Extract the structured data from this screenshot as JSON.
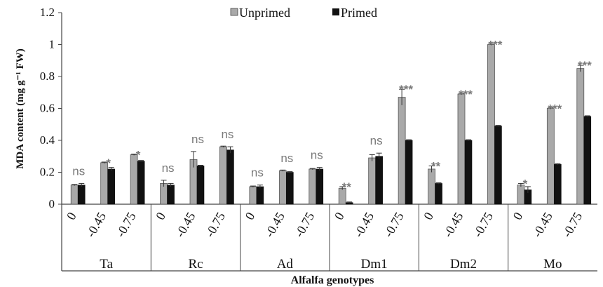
{
  "chart_data": {
    "type": "bar",
    "title": "",
    "xlabel": "Alfalfa genotypes",
    "ylabel": "MDA content (mg g⁻¹ FW)",
    "ylim": [
      0,
      1.2
    ],
    "yticks": [
      "0",
      "0.2",
      "0.4",
      "0.6",
      "0.8",
      "1",
      "1.2"
    ],
    "legend_position": "top-center",
    "colors": {
      "Unprimed": "#a9a9a9",
      "Primed": "#111111"
    },
    "groups": [
      {
        "name": "Ta",
        "levels": [
          {
            "label": "0",
            "unprimed": 0.12,
            "unprimed_err": 0.0,
            "primed": 0.12,
            "primed_err": 0.01,
            "sig": "ns"
          },
          {
            "label": "-0.45",
            "unprimed": 0.26,
            "unprimed_err": 0.0,
            "primed": 0.22,
            "primed_err": 0.01,
            "sig": "*"
          },
          {
            "label": "-0.75",
            "unprimed": 0.31,
            "unprimed_err": 0.0,
            "primed": 0.27,
            "primed_err": 0.0,
            "sig": "*"
          }
        ]
      },
      {
        "name": "Rc",
        "levels": [
          {
            "label": "0",
            "unprimed": 0.13,
            "unprimed_err": 0.02,
            "primed": 0.12,
            "primed_err": 0.01,
            "sig": "ns"
          },
          {
            "label": "-0.45",
            "unprimed": 0.28,
            "unprimed_err": 0.05,
            "primed": 0.24,
            "primed_err": 0.0,
            "sig": "ns"
          },
          {
            "label": "-0.75",
            "unprimed": 0.36,
            "unprimed_err": 0.0,
            "primed": 0.34,
            "primed_err": 0.02,
            "sig": "ns"
          }
        ]
      },
      {
        "name": "Ad",
        "levels": [
          {
            "label": "0",
            "unprimed": 0.11,
            "unprimed_err": 0.0,
            "primed": 0.11,
            "primed_err": 0.01,
            "sig": "ns"
          },
          {
            "label": "-0.45",
            "unprimed": 0.21,
            "unprimed_err": 0.0,
            "primed": 0.2,
            "primed_err": 0.0,
            "sig": "ns"
          },
          {
            "label": "-0.75",
            "unprimed": 0.22,
            "unprimed_err": 0.0,
            "primed": 0.22,
            "primed_err": 0.01,
            "sig": "ns"
          }
        ]
      },
      {
        "name": "Dm1",
        "levels": [
          {
            "label": "0",
            "unprimed": 0.1,
            "unprimed_err": 0.01,
            "primed": 0.01,
            "primed_err": 0.0,
            "sig": "**"
          },
          {
            "label": "-0.45",
            "unprimed": 0.29,
            "unprimed_err": 0.02,
            "primed": 0.3,
            "primed_err": 0.02,
            "sig": "ns"
          },
          {
            "label": "-0.75",
            "unprimed": 0.67,
            "unprimed_err": 0.05,
            "primed": 0.4,
            "primed_err": 0.0,
            "sig": "***"
          }
        ]
      },
      {
        "name": "Dm2",
        "levels": [
          {
            "label": "0",
            "unprimed": 0.22,
            "unprimed_err": 0.02,
            "primed": 0.13,
            "primed_err": 0.0,
            "sig": "**"
          },
          {
            "label": "-0.45",
            "unprimed": 0.69,
            "unprimed_err": 0.0,
            "primed": 0.4,
            "primed_err": 0.0,
            "sig": "***"
          },
          {
            "label": "-0.75",
            "unprimed": 1.0,
            "unprimed_err": 0.0,
            "primed": 0.49,
            "primed_err": 0.0,
            "sig": "***"
          }
        ]
      },
      {
        "name": "Mo",
        "levels": [
          {
            "label": "0",
            "unprimed": 0.12,
            "unprimed_err": 0.01,
            "primed": 0.09,
            "primed_err": 0.02,
            "sig": "*"
          },
          {
            "label": "-0.45",
            "unprimed": 0.6,
            "unprimed_err": 0.0,
            "primed": 0.25,
            "primed_err": 0.0,
            "sig": "***"
          },
          {
            "label": "-0.75",
            "unprimed": 0.85,
            "unprimed_err": 0.02,
            "primed": 0.55,
            "primed_err": 0.0,
            "sig": "***"
          }
        ]
      }
    ],
    "series": [
      {
        "name": "Unprimed"
      },
      {
        "name": "Primed"
      }
    ]
  }
}
